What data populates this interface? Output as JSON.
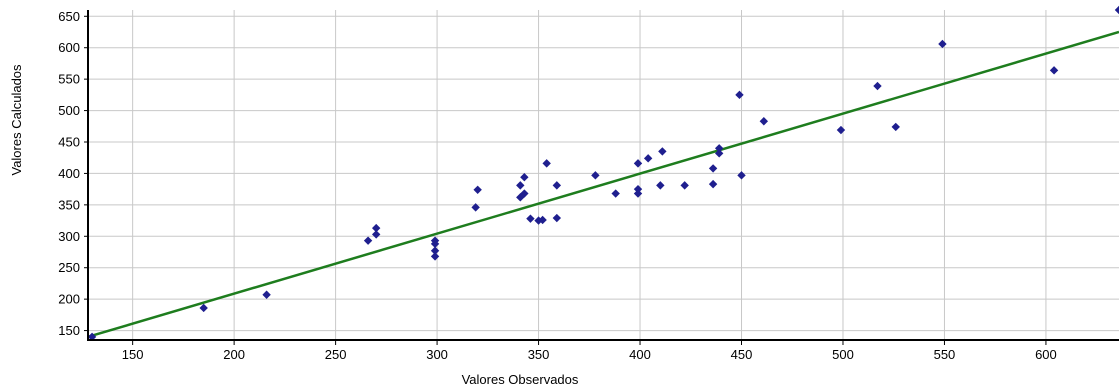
{
  "chart_data": {
    "type": "scatter",
    "xlabel": "Valores Observados",
    "ylabel": "Valores Calculados",
    "xlim": [
      128,
      636
    ],
    "ylim": [
      135,
      660
    ],
    "xticks": [
      150,
      200,
      250,
      300,
      350,
      400,
      450,
      500,
      550,
      600
    ],
    "yticks": [
      150,
      200,
      250,
      300,
      350,
      400,
      450,
      500,
      550,
      600,
      650
    ],
    "grid": true,
    "colors": {
      "points": "#1f1f8f",
      "trendline": "#1e7d1e",
      "grid": "#c8c8c8",
      "axis": "#000000"
    },
    "points": [
      [
        130,
        140
      ],
      [
        185,
        186
      ],
      [
        216,
        207
      ],
      [
        266,
        293
      ],
      [
        270,
        303
      ],
      [
        270,
        313
      ],
      [
        299,
        268
      ],
      [
        299,
        277
      ],
      [
        299,
        288
      ],
      [
        299,
        293
      ],
      [
        319,
        346
      ],
      [
        320,
        374
      ],
      [
        341,
        381
      ],
      [
        341,
        362
      ],
      [
        343,
        368
      ],
      [
        343,
        394
      ],
      [
        346,
        328
      ],
      [
        350,
        325
      ],
      [
        352,
        326
      ],
      [
        354,
        416
      ],
      [
        359,
        381
      ],
      [
        359,
        329
      ],
      [
        378,
        397
      ],
      [
        388,
        368
      ],
      [
        399,
        368
      ],
      [
        399,
        375
      ],
      [
        399,
        416
      ],
      [
        404,
        424
      ],
      [
        410,
        381
      ],
      [
        411,
        435
      ],
      [
        422,
        381
      ],
      [
        436,
        383
      ],
      [
        436,
        408
      ],
      [
        439,
        432
      ],
      [
        439,
        440
      ],
      [
        449,
        525
      ],
      [
        450,
        397
      ],
      [
        461,
        483
      ],
      [
        499,
        469
      ],
      [
        517,
        539
      ],
      [
        526,
        474
      ],
      [
        549,
        606
      ],
      [
        604,
        564
      ],
      [
        636,
        660
      ]
    ],
    "trendline": {
      "x": [
        128,
        636
      ],
      "y": [
        140,
        625
      ]
    }
  }
}
